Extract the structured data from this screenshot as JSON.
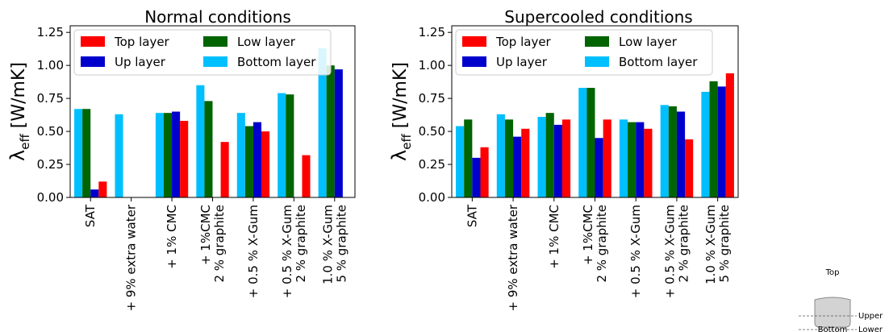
{
  "colors": {
    "top": "#ff0000",
    "up": "#0000cd",
    "low": "#006400",
    "bottom": "#00bfff",
    "inset_fill": "#d3d3d3",
    "inset_stroke": "#888888"
  },
  "chart_data": [
    {
      "type": "bar",
      "title": "Normal conditions",
      "ylabel_base": "λ",
      "ylabel_sub": "eff",
      "ylabel_unit": " [W/mK]",
      "ylim": [
        0,
        1.3
      ],
      "yticks": [
        "0.00",
        "0.25",
        "0.50",
        "0.75",
        "1.00",
        "1.25"
      ],
      "legend_position": "top",
      "categories": [
        [
          "SAT"
        ],
        [
          "+ 9% extra water"
        ],
        [
          "+ 1% CMC"
        ],
        [
          "+ 1%CMC",
          "2 % graphite"
        ],
        [
          "+ 0.5 % X-Gum"
        ],
        [
          "+ 0.5 % X-Gum",
          "2 % graphite"
        ],
        [
          "1.0 % X-Gum",
          "5 % graphite"
        ]
      ],
      "series": [
        {
          "name": "Bottom layer",
          "color_key": "bottom",
          "values": [
            0.67,
            0.63,
            0.64,
            0.85,
            0.64,
            0.79,
            1.13
          ]
        },
        {
          "name": "Low layer",
          "color_key": "low",
          "values": [
            0.67,
            null,
            0.64,
            0.73,
            0.54,
            0.78,
            1.0
          ]
        },
        {
          "name": "Up layer",
          "color_key": "up",
          "values": [
            0.06,
            null,
            0.65,
            null,
            0.57,
            null,
            0.97
          ]
        },
        {
          "name": "Top layer",
          "color_key": "top",
          "values": [
            0.12,
            null,
            0.58,
            0.42,
            0.5,
            0.32,
            null
          ]
        }
      ],
      "legend_order": [
        "Top layer",
        "Low layer",
        "Up layer",
        "Bottom layer"
      ]
    },
    {
      "type": "bar",
      "title": "Supercooled conditions",
      "ylabel_base": "λ",
      "ylabel_sub": "eff",
      "ylabel_unit": " [W/mK]",
      "ylim": [
        0,
        1.3
      ],
      "yticks": [
        "0.00",
        "0.25",
        "0.50",
        "0.75",
        "1.00",
        "1.25"
      ],
      "legend_position": "top",
      "categories": [
        [
          "SAT"
        ],
        [
          "+ 9% extra water"
        ],
        [
          "+ 1% CMC"
        ],
        [
          "+ 1%CMC",
          "2 % graphite"
        ],
        [
          "+ 0.5 % X-Gum"
        ],
        [
          "+ 0.5 % X-Gum",
          "2 % graphite"
        ],
        [
          "1.0 % X-Gum",
          "5 % graphite"
        ]
      ],
      "series": [
        {
          "name": "Bottom layer",
          "color_key": "bottom",
          "values": [
            0.54,
            0.63,
            0.61,
            0.83,
            0.59,
            0.7,
            0.8
          ]
        },
        {
          "name": "Low layer",
          "color_key": "low",
          "values": [
            0.59,
            0.59,
            0.64,
            0.83,
            0.57,
            0.69,
            0.88
          ]
        },
        {
          "name": "Up layer",
          "color_key": "up",
          "values": [
            0.3,
            0.46,
            0.55,
            0.45,
            0.57,
            0.65,
            0.84
          ]
        },
        {
          "name": "Top layer",
          "color_key": "top",
          "values": [
            0.38,
            0.52,
            0.59,
            0.59,
            0.52,
            0.44,
            0.94
          ]
        }
      ],
      "legend_order": [
        "Top layer",
        "Low layer",
        "Up layer",
        "Bottom layer"
      ]
    }
  ],
  "inset": {
    "top_label": "Top",
    "upper_label": "Upper",
    "lower_label": "Lower",
    "bottom_label": "Bottom"
  }
}
